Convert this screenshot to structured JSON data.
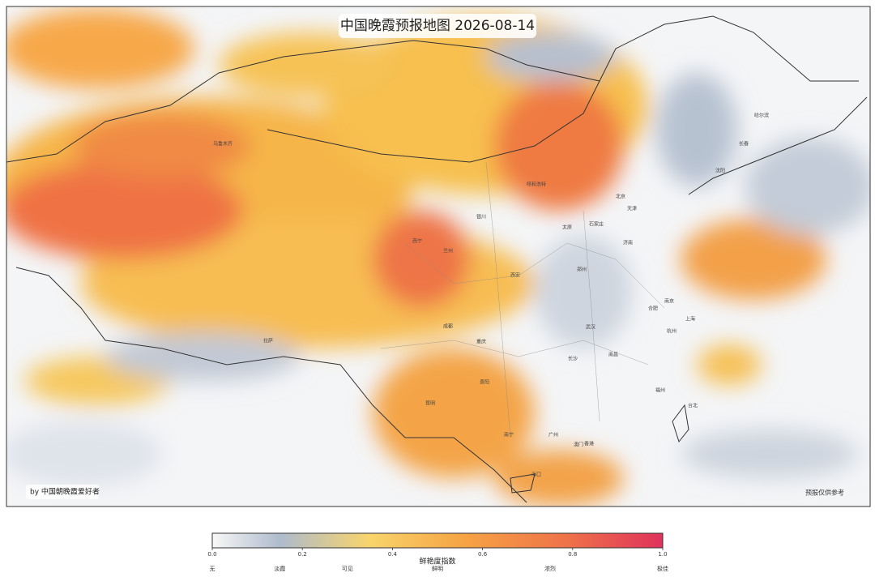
{
  "header": {
    "title": "中国晚霞预报地图  2026-08-14"
  },
  "credit": "by 中国朝晚霞爱好者",
  "disclaimer": "预报仅供参考",
  "cities": [
    "乌鲁木齐",
    "西宁",
    "兰州",
    "银川",
    "呼和浩特",
    "北京",
    "天津",
    "石家庄",
    "太原",
    "济南",
    "郑州",
    "西安",
    "成都",
    "重庆",
    "拉萨",
    "武汉",
    "合肥",
    "南京",
    "上海",
    "杭州",
    "南昌",
    "长沙",
    "贵阳",
    "昆明",
    "南宁",
    "广州",
    "香港",
    "澳门",
    "海口",
    "福州",
    "台北",
    "哈尔滨",
    "长春",
    "沈阳"
  ],
  "colorbar": {
    "label": "鲜艳度指数",
    "lim": [
      0,
      1
    ],
    "ticks": [
      {
        "value": 0,
        "label": "0.0"
      },
      {
        "value": 0.2,
        "label": "0.2"
      },
      {
        "value": 0.4,
        "label": "0.4"
      },
      {
        "value": 0.6,
        "label": "0.6"
      },
      {
        "value": 0.8,
        "label": "0.8"
      },
      {
        "value": 1,
        "label": "1.0"
      }
    ],
    "categories": [
      {
        "value": 0,
        "label": "无"
      },
      {
        "value": 0.15,
        "label": "淡霞"
      },
      {
        "value": 0.3,
        "label": "可见"
      },
      {
        "value": 0.5,
        "label": "鲜明"
      },
      {
        "value": 0.75,
        "label": "浓烈"
      },
      {
        "value": 1,
        "label": "极佳"
      }
    ]
  }
}
